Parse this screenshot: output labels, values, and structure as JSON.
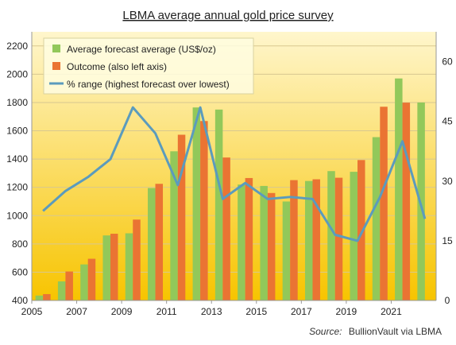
{
  "chart_data": {
    "type": "bar",
    "title": "LBMA average annual  gold price survey",
    "source_label": "Source:",
    "source_text": "BullionVault via LBMA",
    "years": [
      2005,
      2006,
      2007,
      2008,
      2009,
      2010,
      2011,
      2012,
      2013,
      2014,
      2015,
      2016,
      2017,
      2018,
      2019,
      2020,
      2021,
      2022
    ],
    "x_tick_labels": [
      "2005",
      "2007",
      "2009",
      "2011",
      "2013",
      "2015",
      "2017",
      "2019",
      "2021"
    ],
    "left_axis": {
      "min": 400,
      "max": 2300,
      "ticks": [
        400,
        600,
        800,
        1000,
        1200,
        1400,
        1600,
        1800,
        2000,
        2200
      ]
    },
    "right_axis": {
      "min": 0,
      "max": 67.5,
      "ticks": [
        0,
        15,
        30,
        45,
        60
      ]
    },
    "legend_position": "top-left",
    "grid": "horizontal",
    "series": [
      {
        "name": "Average forecast average (US$/oz)",
        "kind": "bar",
        "axis": "left",
        "color": "#92c85a",
        "values": [
          435,
          535,
          655,
          860,
          875,
          1195,
          1455,
          1765,
          1750,
          1220,
          1210,
          1100,
          1245,
          1315,
          1310,
          1555,
          1970,
          1800
        ]
      },
      {
        "name": "Outcome (also left axis)",
        "kind": "bar",
        "axis": "left",
        "color": "#ea7433",
        "values": [
          445,
          605,
          695,
          872,
          972,
          1225,
          1572,
          1669,
          1411,
          1266,
          1160,
          1251,
          1257,
          1268,
          1393,
          1770,
          1799,
          null
        ]
      },
      {
        "name": "% range (highest forecast over lowest)",
        "kind": "line",
        "axis": "right",
        "color": "#5b9bbd",
        "values": [
          22.5,
          27.5,
          31,
          35.5,
          48.5,
          42,
          29,
          48.5,
          25.5,
          29.5,
          25.5,
          26,
          25.5,
          16.5,
          15,
          26,
          40,
          20.5
        ]
      }
    ]
  },
  "colors": {
    "plot_top": "#fff6cc",
    "plot_bottom": "#f7c400",
    "gridline": "#d8c890",
    "axis": "#999999"
  }
}
